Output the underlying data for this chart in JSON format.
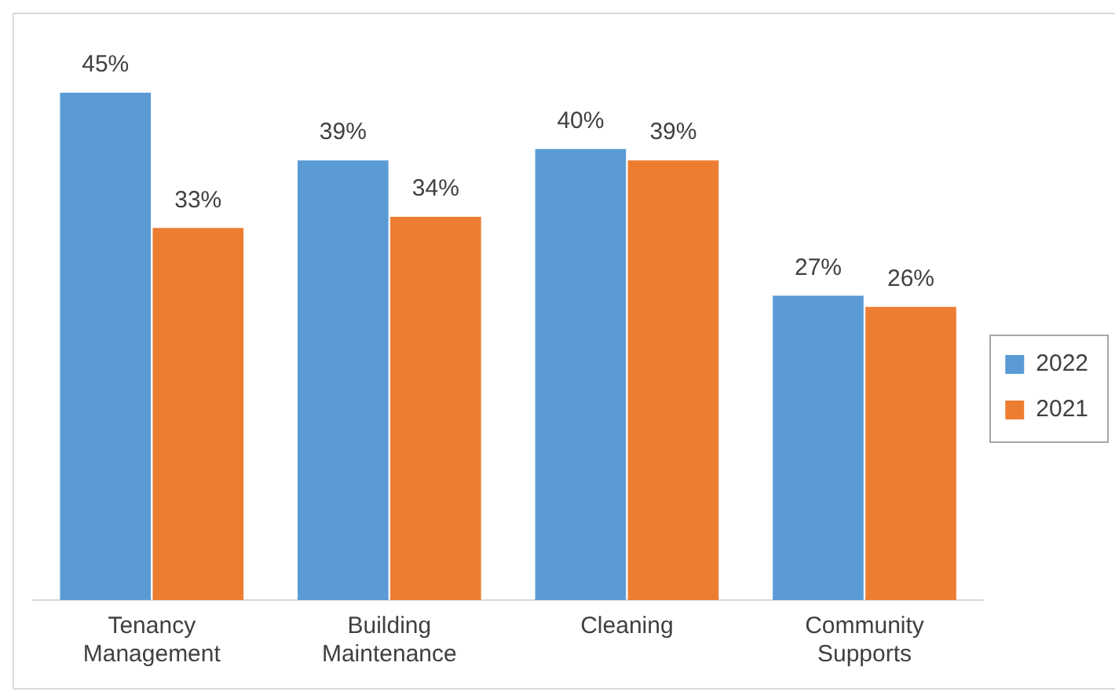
{
  "chart_data": {
    "type": "bar",
    "categories": [
      "Tenancy Management",
      "Building Maintenance",
      "Cleaning",
      "Community Supports"
    ],
    "series": [
      {
        "name": "2022",
        "color": "#5b9bd5",
        "values": [
          45,
          39,
          40,
          27
        ],
        "value_labels": [
          "45%",
          "39%",
          "40%",
          "27%"
        ]
      },
      {
        "name": "2021",
        "color": "#ed7d31",
        "values": [
          33,
          34,
          39,
          26
        ],
        "value_labels": [
          "33%",
          "34%",
          "39%",
          "26%"
        ]
      }
    ],
    "legend": "right"
  }
}
